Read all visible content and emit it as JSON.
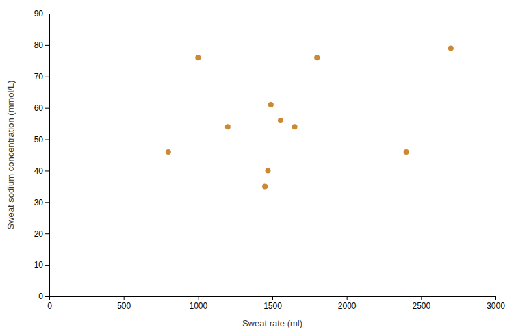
{
  "chart_data": {
    "type": "scatter",
    "x": [
      800,
      1000,
      1200,
      1450,
      1470,
      1490,
      1555,
      1650,
      1800,
      2400,
      2700
    ],
    "values": [
      46,
      76,
      54,
      35,
      40,
      61,
      56,
      54,
      76,
      46,
      79
    ],
    "color": "#CC8833",
    "xlabel": "Sweat rate (ml)",
    "ylabel": "Sweat sodium concentration (mmol/L)",
    "xlim": [
      0,
      3000
    ],
    "ylim": [
      0,
      90
    ],
    "xticks": [
      0,
      500,
      1000,
      1500,
      2000,
      2500,
      3000
    ],
    "yticks": [
      0,
      10,
      20,
      30,
      40,
      50,
      60,
      70,
      80,
      90
    ],
    "grid": false
  }
}
